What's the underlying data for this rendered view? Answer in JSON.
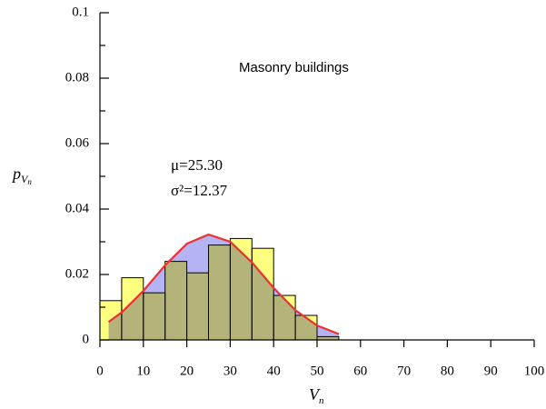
{
  "chart_data": {
    "type": "histogram",
    "bins": [
      0,
      5,
      10,
      15,
      20,
      25,
      30,
      35,
      40,
      45,
      50,
      55
    ],
    "values": [
      0.012,
      0.019,
      0.0144,
      0.024,
      0.0205,
      0.029,
      0.031,
      0.028,
      0.0136,
      0.0075,
      0.001
    ],
    "color": "#ffff80",
    "curve": {
      "color": "#ee3030",
      "fill": "#b4b4f4",
      "x": [
        2,
        5,
        10,
        15,
        20,
        25,
        30,
        35,
        40,
        45,
        50,
        55
      ],
      "values": [
        0.0055,
        0.0084,
        0.015,
        0.0228,
        0.0294,
        0.0322,
        0.03,
        0.0237,
        0.0159,
        0.0091,
        0.0044,
        0.0018
      ]
    },
    "xlim": [
      0,
      100
    ],
    "xticks": [
      0,
      10,
      20,
      30,
      40,
      50,
      60,
      70,
      80,
      90,
      100
    ],
    "ylim": [
      0,
      0.1
    ],
    "yticks": [
      0,
      0.02,
      0.04,
      0.06,
      0.08,
      0.1
    ],
    "yminorticks": [
      0.01,
      0.03,
      0.05,
      0.07,
      0.09
    ],
    "xlabel": {
      "text": "V",
      "subscript": "n"
    },
    "ylabel": {
      "text": "p",
      "subscript": "V",
      "subscript2": "n"
    },
    "annotations": [
      "Masonry buildings",
      "μ=25.30",
      "σ²=12.37"
    ]
  }
}
